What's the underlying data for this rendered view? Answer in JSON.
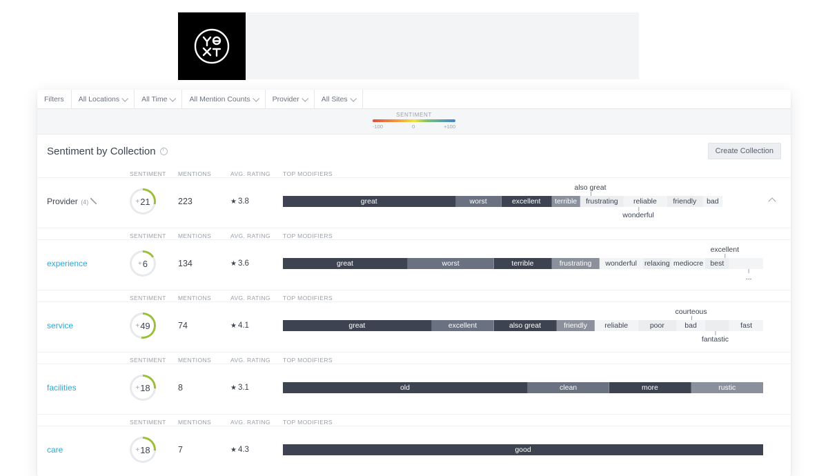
{
  "logo": {
    "name": "yext-logo"
  },
  "filters": {
    "label": "Filters",
    "items": [
      {
        "label": "All Locations"
      },
      {
        "label": "All Time"
      },
      {
        "label": "All Mention Counts"
      },
      {
        "label": "Provider"
      },
      {
        "label": "All Sites"
      }
    ]
  },
  "legend": {
    "title": "SENTIMENT",
    "min": "-100",
    "mid": "0",
    "max": "+100"
  },
  "section": {
    "title": "Sentiment by Collection",
    "create_btn": "Create Collection"
  },
  "colHeaders": {
    "sentiment": "SENTIMENT",
    "mentions": "MENTIONS",
    "rating": "AVG. RATING",
    "modifiers": "TOP MODIFIERS"
  },
  "colors": {
    "dark": "#3d4350",
    "mid": "#6a7180",
    "grayseg": "#8a909c",
    "light1": "#ecedef",
    "light2": "#f3f4f5",
    "donut_pos": "#9bbf3b",
    "donut_track": "#e7e9ec",
    "link": "#2fa7d6"
  },
  "rows": [
    {
      "key": "provider",
      "name": "Provider",
      "nameStrong": true,
      "sub": "(4)",
      "editable": true,
      "sentiment": 21,
      "mentions": "223",
      "rating": "3.8",
      "segments": [
        {
          "label": "great",
          "w": 36,
          "shade": "dark"
        },
        {
          "label": "worst",
          "w": 9.5,
          "shade": "mid"
        },
        {
          "label": "excellent",
          "w": 10.5,
          "shade": "dark"
        },
        {
          "label": "terrible",
          "w": 6,
          "shade": "grayseg"
        },
        {
          "label": "frustrating",
          "w": 9,
          "shade": "light1",
          "light": true
        },
        {
          "label": "reliable",
          "w": 9,
          "shade": "light2",
          "light": true
        },
        {
          "label": "friendly",
          "w": 7.5,
          "shade": "light1",
          "light": true
        },
        {
          "label": "bad",
          "w": 4,
          "shade": "light2",
          "light": true
        }
      ],
      "callouts": [
        {
          "text": "also great",
          "pos": "above",
          "leftPct": 64
        },
        {
          "text": "wonderful",
          "pos": "below",
          "leftPct": 74
        }
      ],
      "expandable": true
    },
    {
      "key": "experience",
      "name": "experience",
      "sentiment": 6,
      "mentions": "134",
      "rating": "3.6",
      "segments": [
        {
          "label": "great",
          "w": 26,
          "shade": "dark"
        },
        {
          "label": "worst",
          "w": 18,
          "shade": "mid"
        },
        {
          "label": "terrible",
          "w": 12,
          "shade": "dark"
        },
        {
          "label": "frustrating",
          "w": 10,
          "shade": "grayseg"
        },
        {
          "label": "wonderful",
          "w": 9,
          "shade": "light2",
          "light": true
        },
        {
          "label": "relaxing",
          "w": 6,
          "shade": "light1",
          "light": true
        },
        {
          "label": "mediocre",
          "w": 7,
          "shade": "light2",
          "light": true
        },
        {
          "label": "best",
          "w": 5,
          "shade": "light1",
          "light": true
        },
        {
          "label": "",
          "w": 7,
          "shade": "light2",
          "light": true
        }
      ],
      "callouts": [
        {
          "text": "excellent",
          "pos": "above",
          "leftPct": 92
        },
        {
          "text": "...",
          "pos": "below",
          "leftPct": 97
        }
      ]
    },
    {
      "key": "service",
      "name": "service",
      "sentiment": 49,
      "mentions": "74",
      "rating": "4.1",
      "segments": [
        {
          "label": "great",
          "w": 31,
          "shade": "dark"
        },
        {
          "label": "excellent",
          "w": 13,
          "shade": "mid"
        },
        {
          "label": "also great",
          "w": 13,
          "shade": "dark"
        },
        {
          "label": "friendly",
          "w": 8,
          "shade": "grayseg"
        },
        {
          "label": "reliable",
          "w": 9,
          "shade": "light2",
          "light": true
        },
        {
          "label": "poor",
          "w": 8,
          "shade": "light1",
          "light": true
        },
        {
          "label": "bad",
          "w": 6,
          "shade": "light2",
          "light": true
        },
        {
          "label": "",
          "w": 5,
          "shade": "light1",
          "light": true
        },
        {
          "label": "fast",
          "w": 7,
          "shade": "light2",
          "light": true
        }
      ],
      "callouts": [
        {
          "text": "courteous",
          "pos": "above",
          "leftPct": 85
        },
        {
          "text": "fantastic",
          "pos": "below",
          "leftPct": 90
        }
      ]
    },
    {
      "key": "facilities",
      "name": "facilities",
      "sentiment": 18,
      "mentions": "8",
      "rating": "3.1",
      "segments": [
        {
          "label": "old",
          "w": 51,
          "shade": "dark"
        },
        {
          "label": "clean",
          "w": 17,
          "shade": "mid"
        },
        {
          "label": "more",
          "w": 17,
          "shade": "dark"
        },
        {
          "label": "rustic",
          "w": 15,
          "shade": "grayseg"
        }
      ]
    },
    {
      "key": "care",
      "name": "care",
      "sentiment": 18,
      "mentions": "7",
      "rating": "4.3",
      "segments": [
        {
          "label": "good",
          "w": 100,
          "shade": "dark"
        }
      ]
    }
  ]
}
